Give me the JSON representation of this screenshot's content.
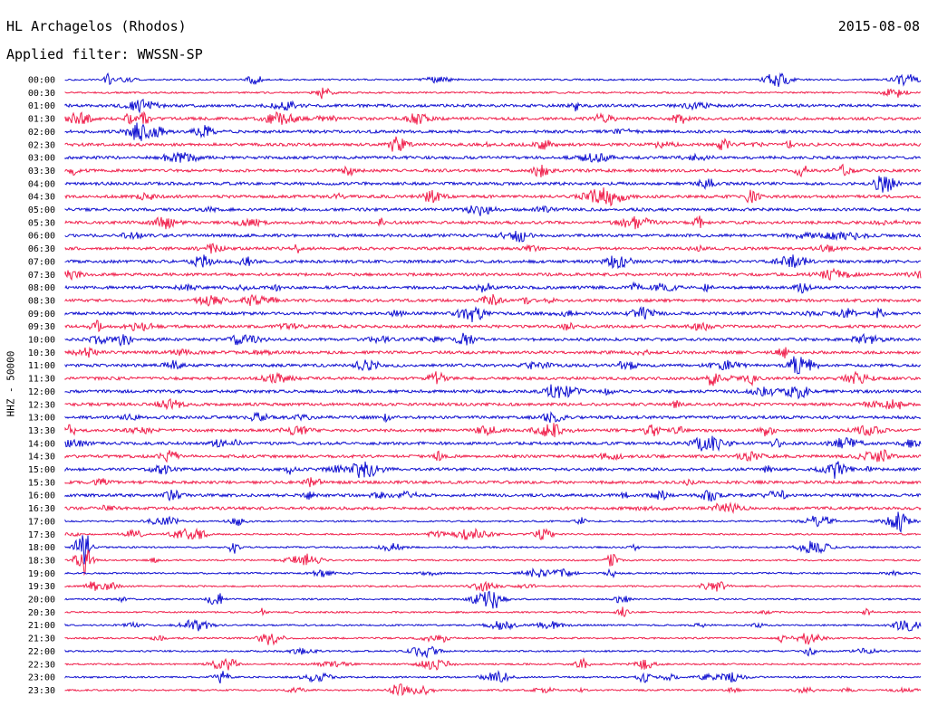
{
  "header": {
    "station": "HL Archagelos (Rhodos)",
    "date": "2015-08-08",
    "filter": "Applied filter: WWSSN-SP"
  },
  "chart_data": {
    "type": "line",
    "ylabel": "HHZ - 50000",
    "rows": [
      "00:00",
      "00:30",
      "01:00",
      "01:30",
      "02:00",
      "02:30",
      "03:00",
      "03:30",
      "04:00",
      "04:30",
      "05:00",
      "05:30",
      "06:00",
      "06:30",
      "07:00",
      "07:30",
      "08:00",
      "08:30",
      "09:00",
      "09:30",
      "10:00",
      "10:30",
      "11:00",
      "11:30",
      "12:00",
      "12:30",
      "13:00",
      "13:30",
      "14:00",
      "14:30",
      "15:00",
      "15:30",
      "16:00",
      "16:30",
      "17:00",
      "17:30",
      "18:00",
      "18:30",
      "19:00",
      "19:30",
      "20:00",
      "20:30",
      "21:00",
      "21:30",
      "22:00",
      "22:30",
      "23:00",
      "23:30"
    ],
    "colors": {
      "even": "#1010d0",
      "odd": "#f0204c"
    }
  }
}
